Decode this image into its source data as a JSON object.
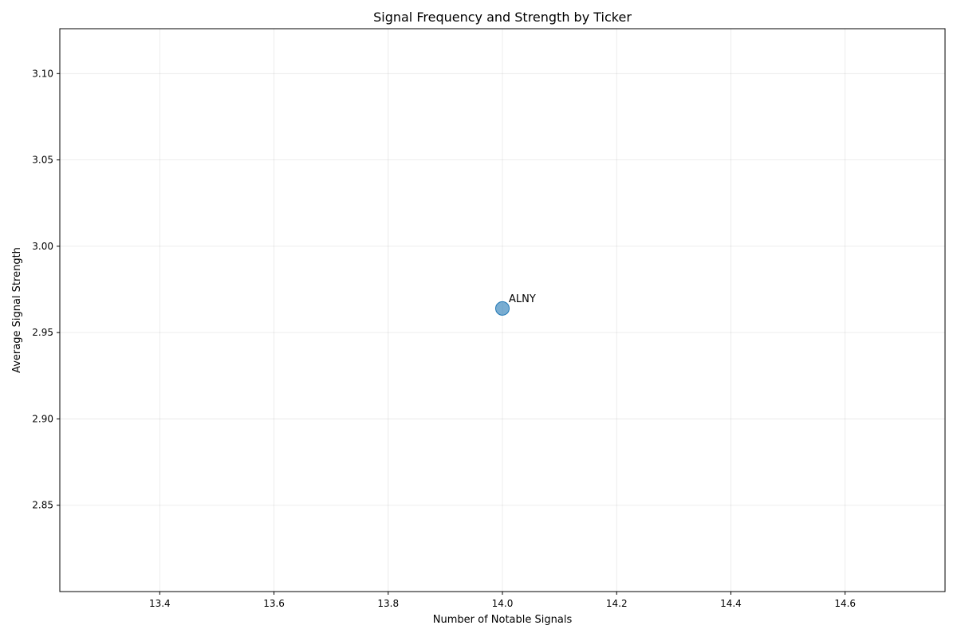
{
  "chart_data": {
    "type": "scatter",
    "title": "Signal Frequency and Strength by Ticker",
    "xlabel": "Number of Notable Signals",
    "ylabel": "Average Signal Strength",
    "xlim": [
      13.225,
      14.775
    ],
    "ylim": [
      2.8,
      3.126
    ],
    "xticks": [
      13.4,
      13.6,
      13.8,
      14.0,
      14.2,
      14.4,
      14.6
    ],
    "xtick_labels": [
      "13.4",
      "13.6",
      "13.8",
      "14.0",
      "14.2",
      "14.4",
      "14.6"
    ],
    "yticks": [
      2.85,
      2.9,
      2.95,
      3.0,
      3.05,
      3.1
    ],
    "ytick_labels": [
      "2.85",
      "2.90",
      "2.95",
      "3.00",
      "3.05",
      "3.10"
    ],
    "grid": true,
    "points": [
      {
        "label": "ALNY",
        "x": 14.0,
        "y": 2.964
      }
    ],
    "marker_color": "#1f77b4",
    "marker_alpha": 0.6
  }
}
